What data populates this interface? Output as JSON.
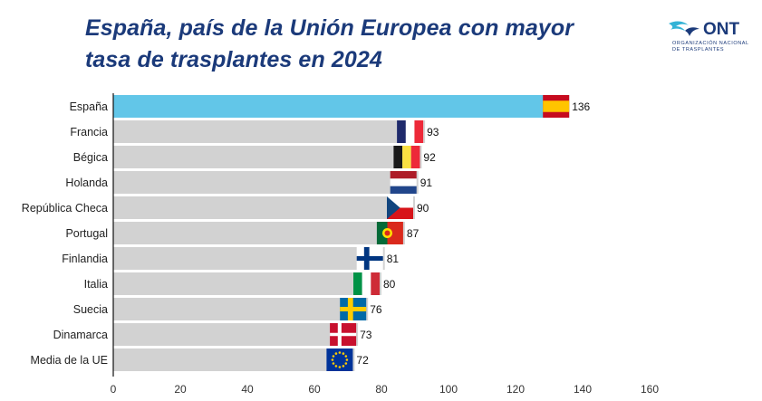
{
  "title": {
    "line1": "España, país de la Unión Europea con mayor",
    "line2": "tasa de trasplantes en 2024"
  },
  "logo": {
    "word": "ONT",
    "sub1": "ORGANIZACIÓN NACIONAL",
    "sub2": "DE TRASPLANTES"
  },
  "colors": {
    "highlight": "#62c6e8",
    "bar": "#d2d2d2",
    "title": "#1b3a7a",
    "logo_accent": "#33b3d6"
  },
  "chart_data": {
    "type": "bar",
    "orientation": "horizontal",
    "categories": [
      "España",
      "Francia",
      "Bégica",
      "Holanda",
      "República Checa",
      "Portugal",
      "Finlandia",
      "Italia",
      "Suecia",
      "Dinamarca",
      "Media de la UE"
    ],
    "values": [
      136,
      93,
      92,
      91,
      90,
      87,
      81,
      80,
      76,
      73,
      72
    ],
    "value_labels": [
      "136",
      "93",
      "92",
      "91",
      "90",
      "87",
      "81",
      "80",
      "76",
      "73",
      "72"
    ],
    "highlight_index": 0,
    "flags": [
      "flag-spain-icon",
      "flag-france-icon",
      "flag-belgium-icon",
      "flag-netherlands-icon",
      "flag-czechia-icon",
      "flag-portugal-icon",
      "flag-finland-icon",
      "flag-italy-icon",
      "flag-sweden-icon",
      "flag-denmark-icon",
      "flag-eu-icon"
    ],
    "xlim": [
      0,
      160
    ],
    "xticks": [
      "0",
      "20",
      "40",
      "60",
      "80",
      "100",
      "120",
      "140",
      "160"
    ],
    "grid": false,
    "legend": "none"
  }
}
